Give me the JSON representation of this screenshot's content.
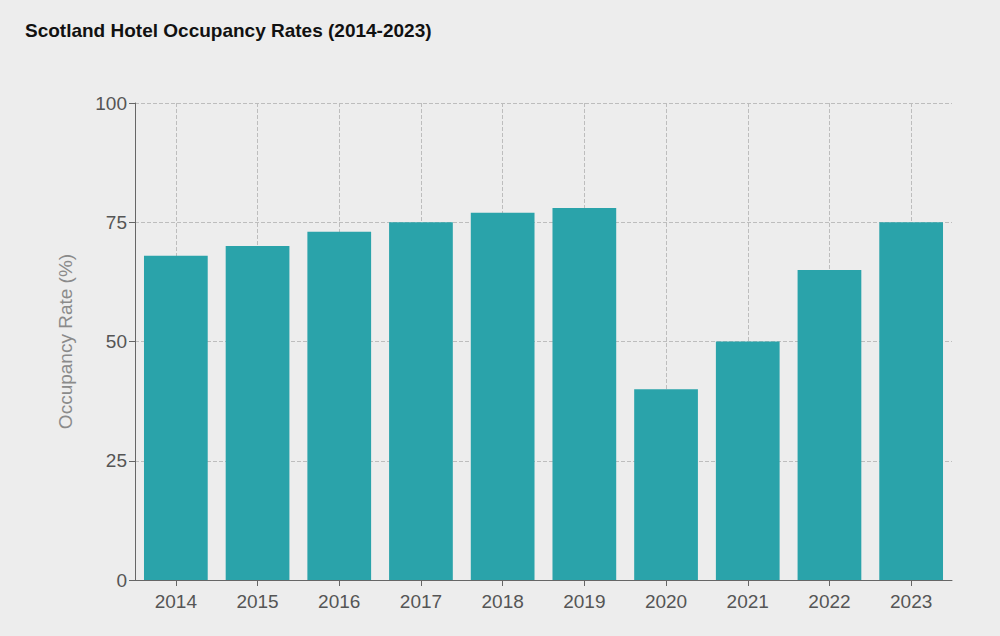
{
  "chart_data": {
    "type": "bar",
    "title": "Scotland Hotel Occupancy Rates (2014-2023)",
    "y_label": "Occupancy Rate (%)",
    "categories": [
      "2014",
      "2015",
      "2016",
      "2017",
      "2018",
      "2019",
      "2020",
      "2021",
      "2022",
      "2023"
    ],
    "values": [
      68,
      70,
      73,
      75,
      77,
      78,
      40,
      50,
      65,
      75
    ],
    "color": "#2aa3aa",
    "ylim": [
      0,
      100
    ],
    "yticks": [
      0,
      25,
      50,
      75,
      100
    ],
    "grid": true
  }
}
